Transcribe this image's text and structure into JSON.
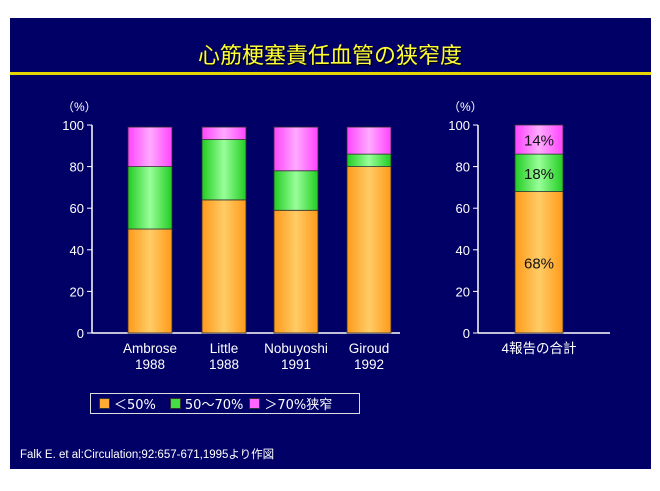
{
  "title": "心筋梗塞責任血管の狭窄度",
  "colors": {
    "background": "#000066",
    "title": "#ffff33",
    "lt50": "#ffaa33",
    "mid": "#44dd44",
    "gt70": "#ff66ff"
  },
  "legend": [
    "＜50%",
    "50〜70%",
    "＞70%狭窄"
  ],
  "source": "Falk E. et al:Circulation;92:657-671,1995より作図",
  "chart_data": [
    {
      "type": "bar",
      "stacked": true,
      "ylabel": "（%）",
      "ylim": [
        0,
        100
      ],
      "yticks": [
        0,
        20,
        40,
        60,
        80,
        100
      ],
      "categories": [
        [
          "Ambrose",
          "1988"
        ],
        [
          "Little",
          "1988"
        ],
        [
          "Nobuyoshi",
          "1991"
        ],
        [
          "Giroud",
          "1992"
        ]
      ],
      "series": [
        {
          "name": "＜50%",
          "values": [
            50,
            64,
            59,
            80
          ]
        },
        {
          "name": "50〜70%",
          "values": [
            30,
            29,
            19,
            6
          ]
        },
        {
          "name": "＞70%狭窄",
          "values": [
            19,
            6,
            21,
            13
          ]
        }
      ]
    },
    {
      "type": "bar",
      "stacked": true,
      "ylabel": "（%）",
      "ylim": [
        0,
        100
      ],
      "yticks": [
        0,
        20,
        40,
        60,
        80,
        100
      ],
      "categories": [
        [
          "4報告の合計"
        ]
      ],
      "series": [
        {
          "name": "＜50%",
          "values": [
            68
          ],
          "labels": [
            "68%"
          ]
        },
        {
          "name": "50〜70%",
          "values": [
            18
          ],
          "labels": [
            "18%"
          ]
        },
        {
          "name": "＞70%狭窄",
          "values": [
            14
          ],
          "labels": [
            "14%"
          ]
        }
      ]
    }
  ]
}
